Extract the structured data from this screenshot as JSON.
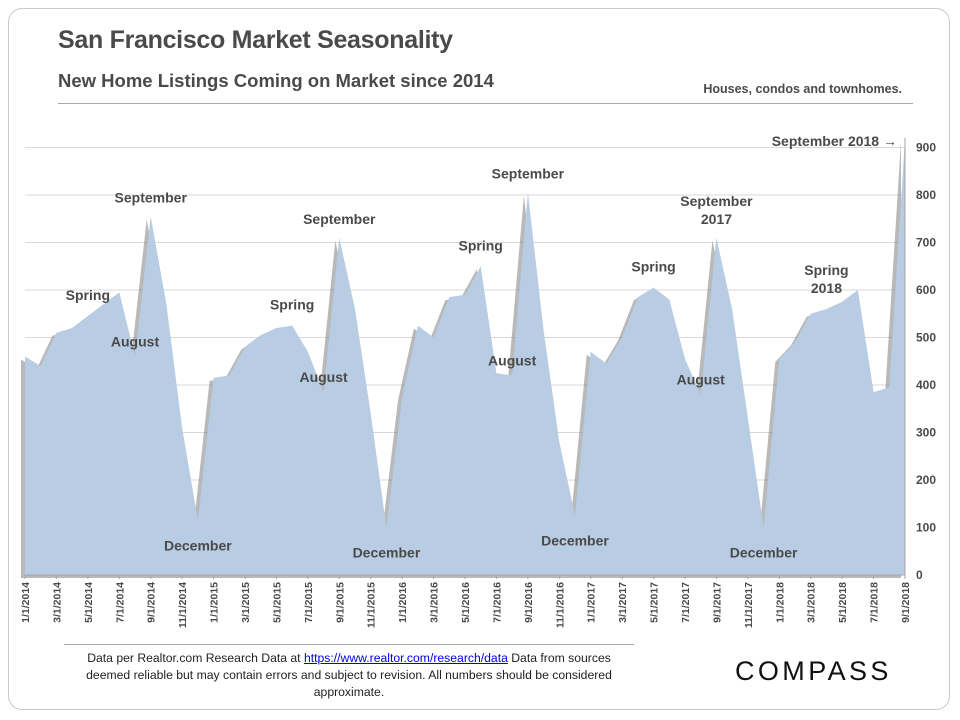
{
  "header": {
    "title": "San Francisco Market Seasonality",
    "subtitle": "New Home Listings Coming on Market since 2014",
    "note": "Houses,  condos and townhomes."
  },
  "footer": {
    "source_prefix": "Data per Realtor.com Research Data at ",
    "source_link": "https://www.realtor.com/research/data",
    "source_suffix": "  Data from sources deemed reliable but may contain errors and subject to revision.  All numbers should be considered approximate.",
    "logo": "COMPASS"
  },
  "colors": {
    "area_fill": "#b8cce4",
    "area_shadow": "#7f7f7f",
    "grid": "#d9d9d9",
    "text": "#4a4a4a"
  },
  "chart_data": {
    "type": "area",
    "x_tick_labels": [
      "1/1/2014",
      "3/1/2014",
      "5/1/2014",
      "7/1/2014",
      "9/1/2014",
      "11/1/2014",
      "1/1/2015",
      "3/1/2015",
      "5/1/2015",
      "7/1/2015",
      "9/1/2015",
      "11/1/2015",
      "1/1/2016",
      "3/1/2016",
      "5/1/2016",
      "7/1/2016",
      "9/1/2016",
      "11/1/2016",
      "1/1/2017",
      "3/1/2017",
      "5/1/2017",
      "7/1/2017",
      "9/1/2017",
      "11/1/2017",
      "1/1/2018",
      "3/1/2018",
      "5/1/2018",
      "7/1/2018",
      "9/1/2018"
    ],
    "y_ticks": [
      0,
      100,
      200,
      300,
      400,
      500,
      600,
      700,
      800,
      900
    ],
    "ylim": [
      0,
      920
    ],
    "y_axis_side": "right",
    "grid": true,
    "series": [
      {
        "months": [
          "2014-01",
          "2014-02",
          "2014-03",
          "2014-04",
          "2014-05",
          "2014-06",
          "2014-07",
          "2014-08",
          "2014-09",
          "2014-10",
          "2014-11",
          "2014-12",
          "2015-01",
          "2015-02",
          "2015-03",
          "2015-04",
          "2015-05",
          "2015-06",
          "2015-07",
          "2015-08",
          "2015-09",
          "2015-10",
          "2015-11",
          "2015-12",
          "2016-01",
          "2016-02",
          "2016-03",
          "2016-04",
          "2016-05",
          "2016-06",
          "2016-07",
          "2016-08",
          "2016-09",
          "2016-10",
          "2016-11",
          "2016-12",
          "2017-01",
          "2017-02",
          "2017-03",
          "2017-04",
          "2017-05",
          "2017-06",
          "2017-07",
          "2017-08",
          "2017-09",
          "2017-10",
          "2017-11",
          "2017-12",
          "2018-01",
          "2018-02",
          "2018-03",
          "2018-04",
          "2018-05",
          "2018-06",
          "2018-07",
          "2018-08",
          "2018-09"
        ],
        "values": [
          460,
          440,
          510,
          520,
          545,
          570,
          595,
          460,
          755,
          570,
          310,
          115,
          415,
          420,
          480,
          505,
          520,
          525,
          470,
          385,
          710,
          560,
          340,
          100,
          375,
          525,
          500,
          585,
          590,
          650,
          425,
          420,
          805,
          515,
          280,
          125,
          470,
          445,
          500,
          585,
          605,
          580,
          455,
          380,
          710,
          560,
          330,
          100,
          455,
          490,
          550,
          560,
          575,
          600,
          385,
          395,
          920
        ]
      }
    ],
    "annotations": [
      {
        "text": "Spring",
        "month": "2014-05"
      },
      {
        "text": "September",
        "month": "2014-09"
      },
      {
        "text": "August",
        "month": "2014-08"
      },
      {
        "text": "December",
        "month": "2014-12"
      },
      {
        "text": "Spring",
        "month": "2015-06"
      },
      {
        "text": "September",
        "month": "2015-09"
      },
      {
        "text": "August",
        "month": "2015-08"
      },
      {
        "text": "December",
        "month": "2015-12"
      },
      {
        "text": "Spring",
        "month": "2016-06"
      },
      {
        "text": "September",
        "month": "2016-09"
      },
      {
        "text": "August",
        "month": "2016-08"
      },
      {
        "text": "December",
        "month": "2016-12"
      },
      {
        "text": "Spring",
        "month": "2017-05"
      },
      {
        "text": "September\n2017",
        "month": "2017-09"
      },
      {
        "text": "August",
        "month": "2017-08"
      },
      {
        "text": "December",
        "month": "2017-12"
      },
      {
        "text": "Spring\n2018",
        "month": "2018-04"
      },
      {
        "text": "September 2018 →",
        "month": "2018-09"
      }
    ]
  }
}
